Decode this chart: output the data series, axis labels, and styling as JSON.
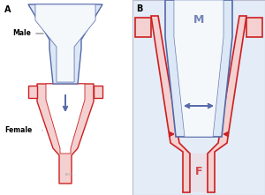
{
  "bg_color": "#ffffff",
  "panel_a_label": "A",
  "panel_b_label": "B",
  "male_label": "Male",
  "female_label": "Female",
  "M_label": "M",
  "F_label": "F",
  "blue_fill": "#dce8f5",
  "blue_fill2": "#c8daf0",
  "blue_stroke": "#5568a8",
  "red_fill": "#f5d0d0",
  "red_stroke": "#cc2020",
  "arrow_blue": "#5568a8",
  "arrow_red": "#cc2020",
  "panel_b_bg": "#e4ecf8",
  "white": "#ffffff",
  "label_color": "#222222"
}
